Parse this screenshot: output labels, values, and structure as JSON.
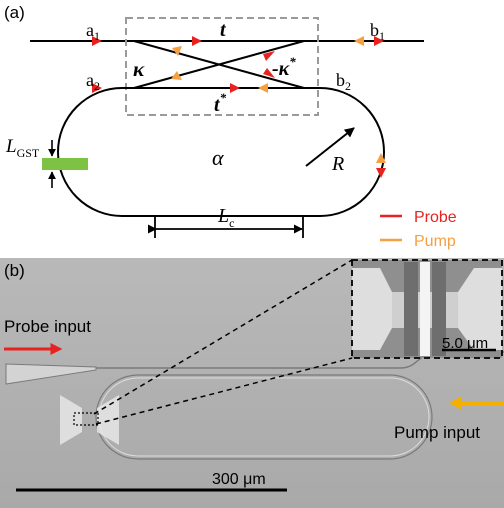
{
  "panel_a": {
    "label": "(a)",
    "ports": {
      "a1": {
        "base": "a",
        "sub": "1"
      },
      "b1": {
        "base": "b",
        "sub": "1"
      },
      "a2": {
        "base": "a",
        "sub": "2"
      },
      "b2": {
        "base": "b",
        "sub": "2"
      }
    },
    "coupler": {
      "t": "t",
      "t_conj": "t",
      "t_conj_sup": "*",
      "kappa": "κ",
      "neg_kappa_conj": "-κ",
      "neg_kappa_sup": "*"
    },
    "gst": {
      "base": "L",
      "sub": "GST",
      "color": "#7dc242"
    },
    "loss": "α",
    "radius": "R",
    "lc": {
      "base": "L",
      "sub": "c"
    },
    "legend": [
      {
        "label": "Probe",
        "color": "#e8221f"
      },
      {
        "label": "Pump",
        "color": "#f4a040"
      }
    ]
  },
  "panel_b": {
    "label": "(b)",
    "probe_input": "Probe input",
    "pump_input": "Pump input",
    "scale_main": "300 μm",
    "scale_inset": "5.0 μm",
    "colors": {
      "probe_arrow": "#e8221f",
      "pump_arrow": "#f4b000"
    }
  }
}
